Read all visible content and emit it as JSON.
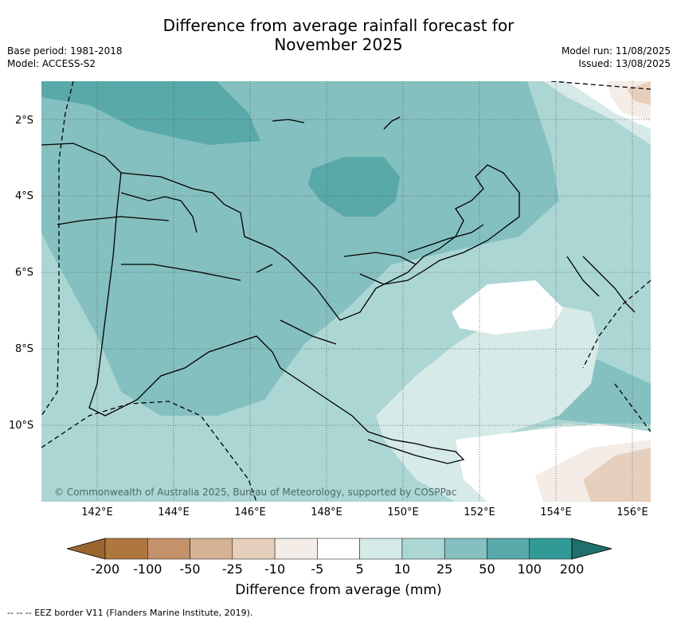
{
  "title_line1": "Difference from average rainfall forecast for",
  "title_line2": "November 2025",
  "meta_left": {
    "base_period": "Base period: 1981-2018",
    "model": "Model: ACCESS-S2"
  },
  "meta_right": {
    "model_run": "Model run: 11/08/2025",
    "issued": "Issued: 13/08/2025"
  },
  "lat_labels": [
    "2°S",
    "4°S",
    "6°S",
    "8°S",
    "10°S"
  ],
  "lon_labels": [
    "142°E",
    "144°E",
    "146°E",
    "148°E",
    "150°E",
    "152°E",
    "154°E",
    "156°E"
  ],
  "copyright": "© Commonwealth of Australia 2025, Bureau of Meteorology, supported by COSPPac",
  "colorbar": {
    "ticks": [
      "-200",
      "-100",
      "-50",
      "-25",
      "-10",
      "-5",
      "5",
      "10",
      "25",
      "50",
      "100",
      "200"
    ],
    "colors": [
      "#9b6530",
      "#b0763f",
      "#c4926a",
      "#d6b294",
      "#e6d0bd",
      "#f4ece6",
      "#ffffff",
      "#d6eae8",
      "#acd6d4",
      "#84c0bf",
      "#59a9a9",
      "#319a96",
      "#1f6f6c"
    ],
    "label": "Difference from average (mm)"
  },
  "footnote": "-- -- -- EEZ border V11 (Flanders Marine Institute, 2019)."
}
